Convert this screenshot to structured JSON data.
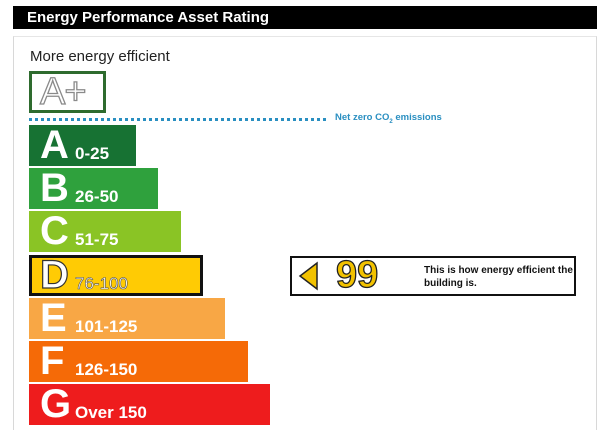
{
  "header": {
    "title": "Energy Performance Asset Rating"
  },
  "scale": {
    "top_label": "More energy efficient",
    "aplus_label": "A+",
    "net_zero_label_pre": "Net zero CO",
    "net_zero_label_sub": "2",
    "net_zero_label_post": " emissions"
  },
  "bands": [
    {
      "letter": "A",
      "range": "0-25",
      "color": "#177233"
    },
    {
      "letter": "B",
      "range": "26-50",
      "color": "#2fa13d"
    },
    {
      "letter": "C",
      "range": "51-75",
      "color": "#8ac425"
    },
    {
      "letter": "D",
      "range": "76-100",
      "color": "#ffcb04"
    },
    {
      "letter": "E",
      "range": "101-125",
      "color": "#f8a745"
    },
    {
      "letter": "F",
      "range": "126-150",
      "color": "#f56a07"
    },
    {
      "letter": "G",
      "range": "Over 150",
      "color": "#ee1c1d"
    }
  ],
  "rating": {
    "value": "99",
    "band": "D",
    "note": "This is how energy efficient the building is."
  }
}
